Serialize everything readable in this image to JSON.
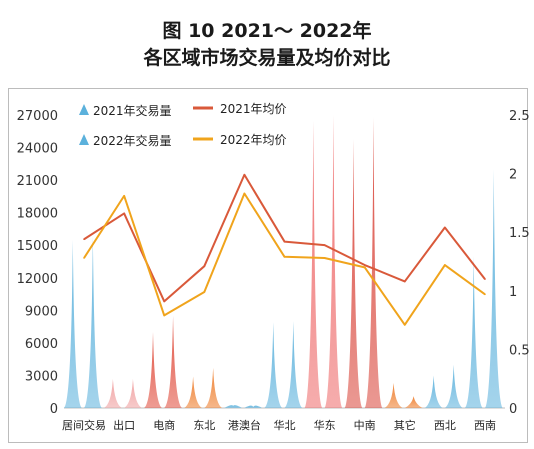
{
  "title_line1": "图 10  2021～ 2022年",
  "title_line2": "各区域市场交易量及均价对比",
  "colors": {
    "blue": "#5bb1dc",
    "price2021": "#d9593a",
    "price2022": "#f0a41c"
  },
  "chart_data": {
    "type": "bar+line",
    "categories": [
      "居间交易",
      "出口",
      "电商",
      "东北",
      "港澳台",
      "华北",
      "华东",
      "中南",
      "其它",
      "西北",
      "西南"
    ],
    "left_axis": {
      "ylim": [
        0,
        27000
      ],
      "ticks": [
        "0",
        "3000",
        "6000",
        "9000",
        "12000",
        "15000",
        "18000",
        "21000",
        "24000",
        "27000"
      ]
    },
    "right_axis": {
      "ylim": [
        0,
        2.5
      ],
      "ticks": [
        "0",
        "0.5",
        "1",
        "1.5",
        "2",
        "2.5"
      ]
    },
    "series": [
      {
        "name": "2021年交易量",
        "type": "bar",
        "axis": "left",
        "values": [
          15500,
          2700,
          7000,
          2900,
          200,
          7900,
          26500,
          24800,
          2300,
          3000,
          14000
        ]
      },
      {
        "name": "2022年交易量",
        "type": "bar",
        "axis": "left",
        "values": [
          15800,
          2700,
          8500,
          3700,
          100,
          8000,
          27000,
          26800,
          1100,
          4000,
          22000
        ]
      },
      {
        "name": "2021年均价",
        "type": "line",
        "axis": "right",
        "values": [
          1.44,
          1.66,
          0.91,
          1.21,
          1.99,
          1.42,
          1.39,
          1.22,
          1.08,
          1.54,
          1.1
        ]
      },
      {
        "name": "2022年均价",
        "type": "line",
        "axis": "right",
        "values": [
          1.28,
          1.81,
          0.79,
          0.99,
          1.83,
          1.29,
          1.28,
          1.2,
          0.71,
          1.22,
          0.97
        ]
      }
    ],
    "bar_colors_by_category": [
      "#5bb1dc",
      "#f0a0a0",
      "#e04c3c",
      "#ee7d2c",
      "#5bb1dc",
      "#5bb1dc",
      "#ee6a6a",
      "#d9453a",
      "#ee7d2c",
      "#5bb1dc",
      "#5bb1dc"
    ],
    "legend_position": "top-left"
  }
}
